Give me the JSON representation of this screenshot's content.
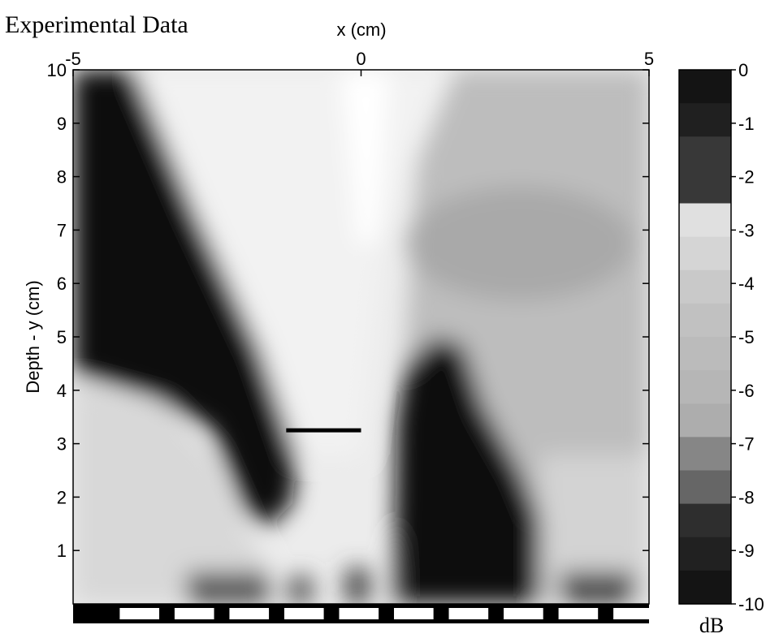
{
  "chart_data": {
    "type": "heatmap",
    "title": "Experimental Data",
    "xlabel": "x (cm)",
    "ylabel": "Depth - y (cm)",
    "xlim": [
      -5,
      5
    ],
    "ylim": [
      0,
      10
    ],
    "x_ticks": [
      -5,
      0,
      5
    ],
    "y_ticks": [
      1,
      2,
      3,
      4,
      5,
      6,
      7,
      8,
      9,
      10
    ],
    "colorbar": {
      "label": "dB",
      "range": [
        -10,
        0
      ],
      "ticks": [
        0,
        -1,
        -2,
        -3,
        -4,
        -5,
        -6,
        -7,
        -8,
        -9,
        -10
      ],
      "colormap": "gray",
      "values": [
        0,
        -0.3,
        -0.9,
        -0.9,
        -2.0,
        -2.8,
        -3.6,
        -4.2,
        -4.6,
        -5.0,
        -5.6,
        -6.4,
        -7.2,
        -8.3,
        -9.0,
        -9.7
      ]
    },
    "probe_line": {
      "x": [
        -1.3,
        0
      ],
      "y": 3.25
    },
    "grid": false,
    "legend": "none"
  }
}
